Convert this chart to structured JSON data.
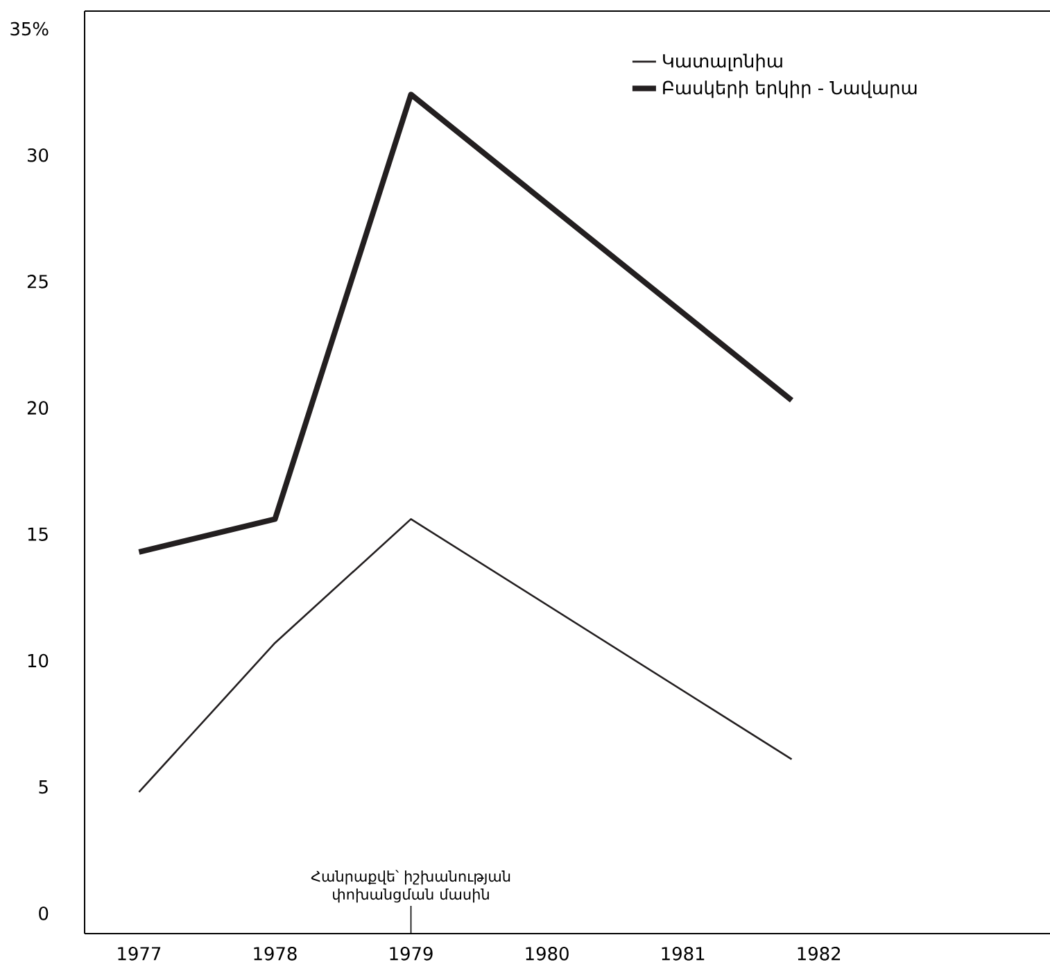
{
  "chart_data": {
    "type": "line",
    "x": [
      1977,
      1978,
      1979,
      1981.8
    ],
    "series": [
      {
        "name": "Կատալոնիա",
        "color": "#231f20",
        "values": [
          4.8,
          10.7,
          15.6,
          6.1
        ]
      },
      {
        "name": "Բասկերի երկիր - Նավարա",
        "color": "#231f20",
        "values": [
          14.3,
          15.6,
          32.4,
          20.3
        ]
      }
    ],
    "xlim": [
      1976.6,
      1983.7
    ],
    "ylim": [
      -0.8,
      35.7
    ],
    "xticks": [
      1977,
      1978,
      1979,
      1980,
      1981,
      1982
    ],
    "yticks": [
      0,
      5,
      10,
      15,
      20,
      25,
      30,
      {
        "value": 35,
        "label": "35%"
      }
    ],
    "legend": "top right",
    "grid": false,
    "marker": "none",
    "line_style": "solid",
    "annotations": [
      {
        "text": "Հանրաքվե՝ իշխանության փոխանցման մասին",
        "x": 1979
      }
    ]
  }
}
